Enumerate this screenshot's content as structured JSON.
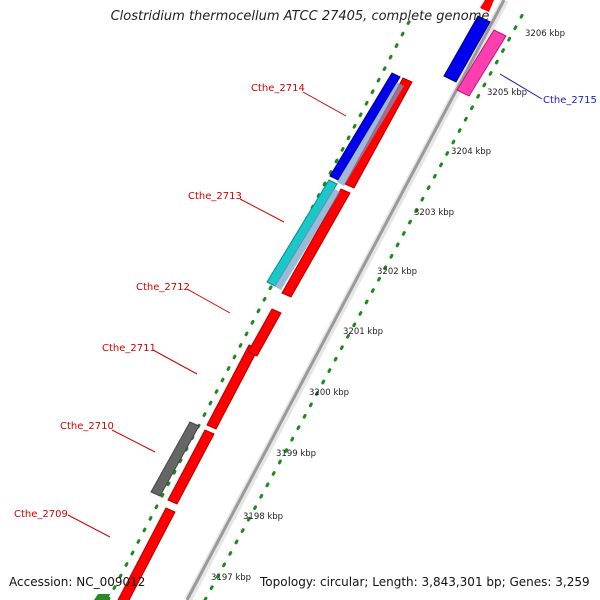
{
  "title": "Clostridium thermocellum ATCC 27405, complete genome",
  "accession": "Accession: NC_009012",
  "topology": "Topology: circular; Length: 3,843,301 bp; Genes: 3,259",
  "scale_labels": [
    "3197 kbp",
    "3198 kbp",
    "3199 kbp",
    "3200 kbp",
    "3201 kbp",
    "3202 kbp",
    "3203 kbp",
    "3204 kbp",
    "3205 kbp",
    "3206 kbp"
  ],
  "gene_labels": [
    {
      "text": "Cthe_2709",
      "color": "#d40000"
    },
    {
      "text": "Cthe_2710",
      "color": "#d40000"
    },
    {
      "text": "Cthe_2711",
      "color": "#d40000"
    },
    {
      "text": "Cthe_2712",
      "color": "#d40000"
    },
    {
      "text": "Cthe_2713",
      "color": "#d40000"
    },
    {
      "text": "Cthe_2714",
      "color": "#d40000"
    },
    {
      "text": "Cthe_2715",
      "color": "#1a1acc"
    }
  ],
  "colors": {
    "cds_red": "#ff0000",
    "cds_blue": "#0000ee",
    "cds_cyan": "#19c8c8",
    "cds_gray": "#666666",
    "cds_pink": "#ff3fb0",
    "cds_green": "#2a8a2a",
    "backbone": "#9a9a9a",
    "gc_dots": "#1d8a1d"
  }
}
